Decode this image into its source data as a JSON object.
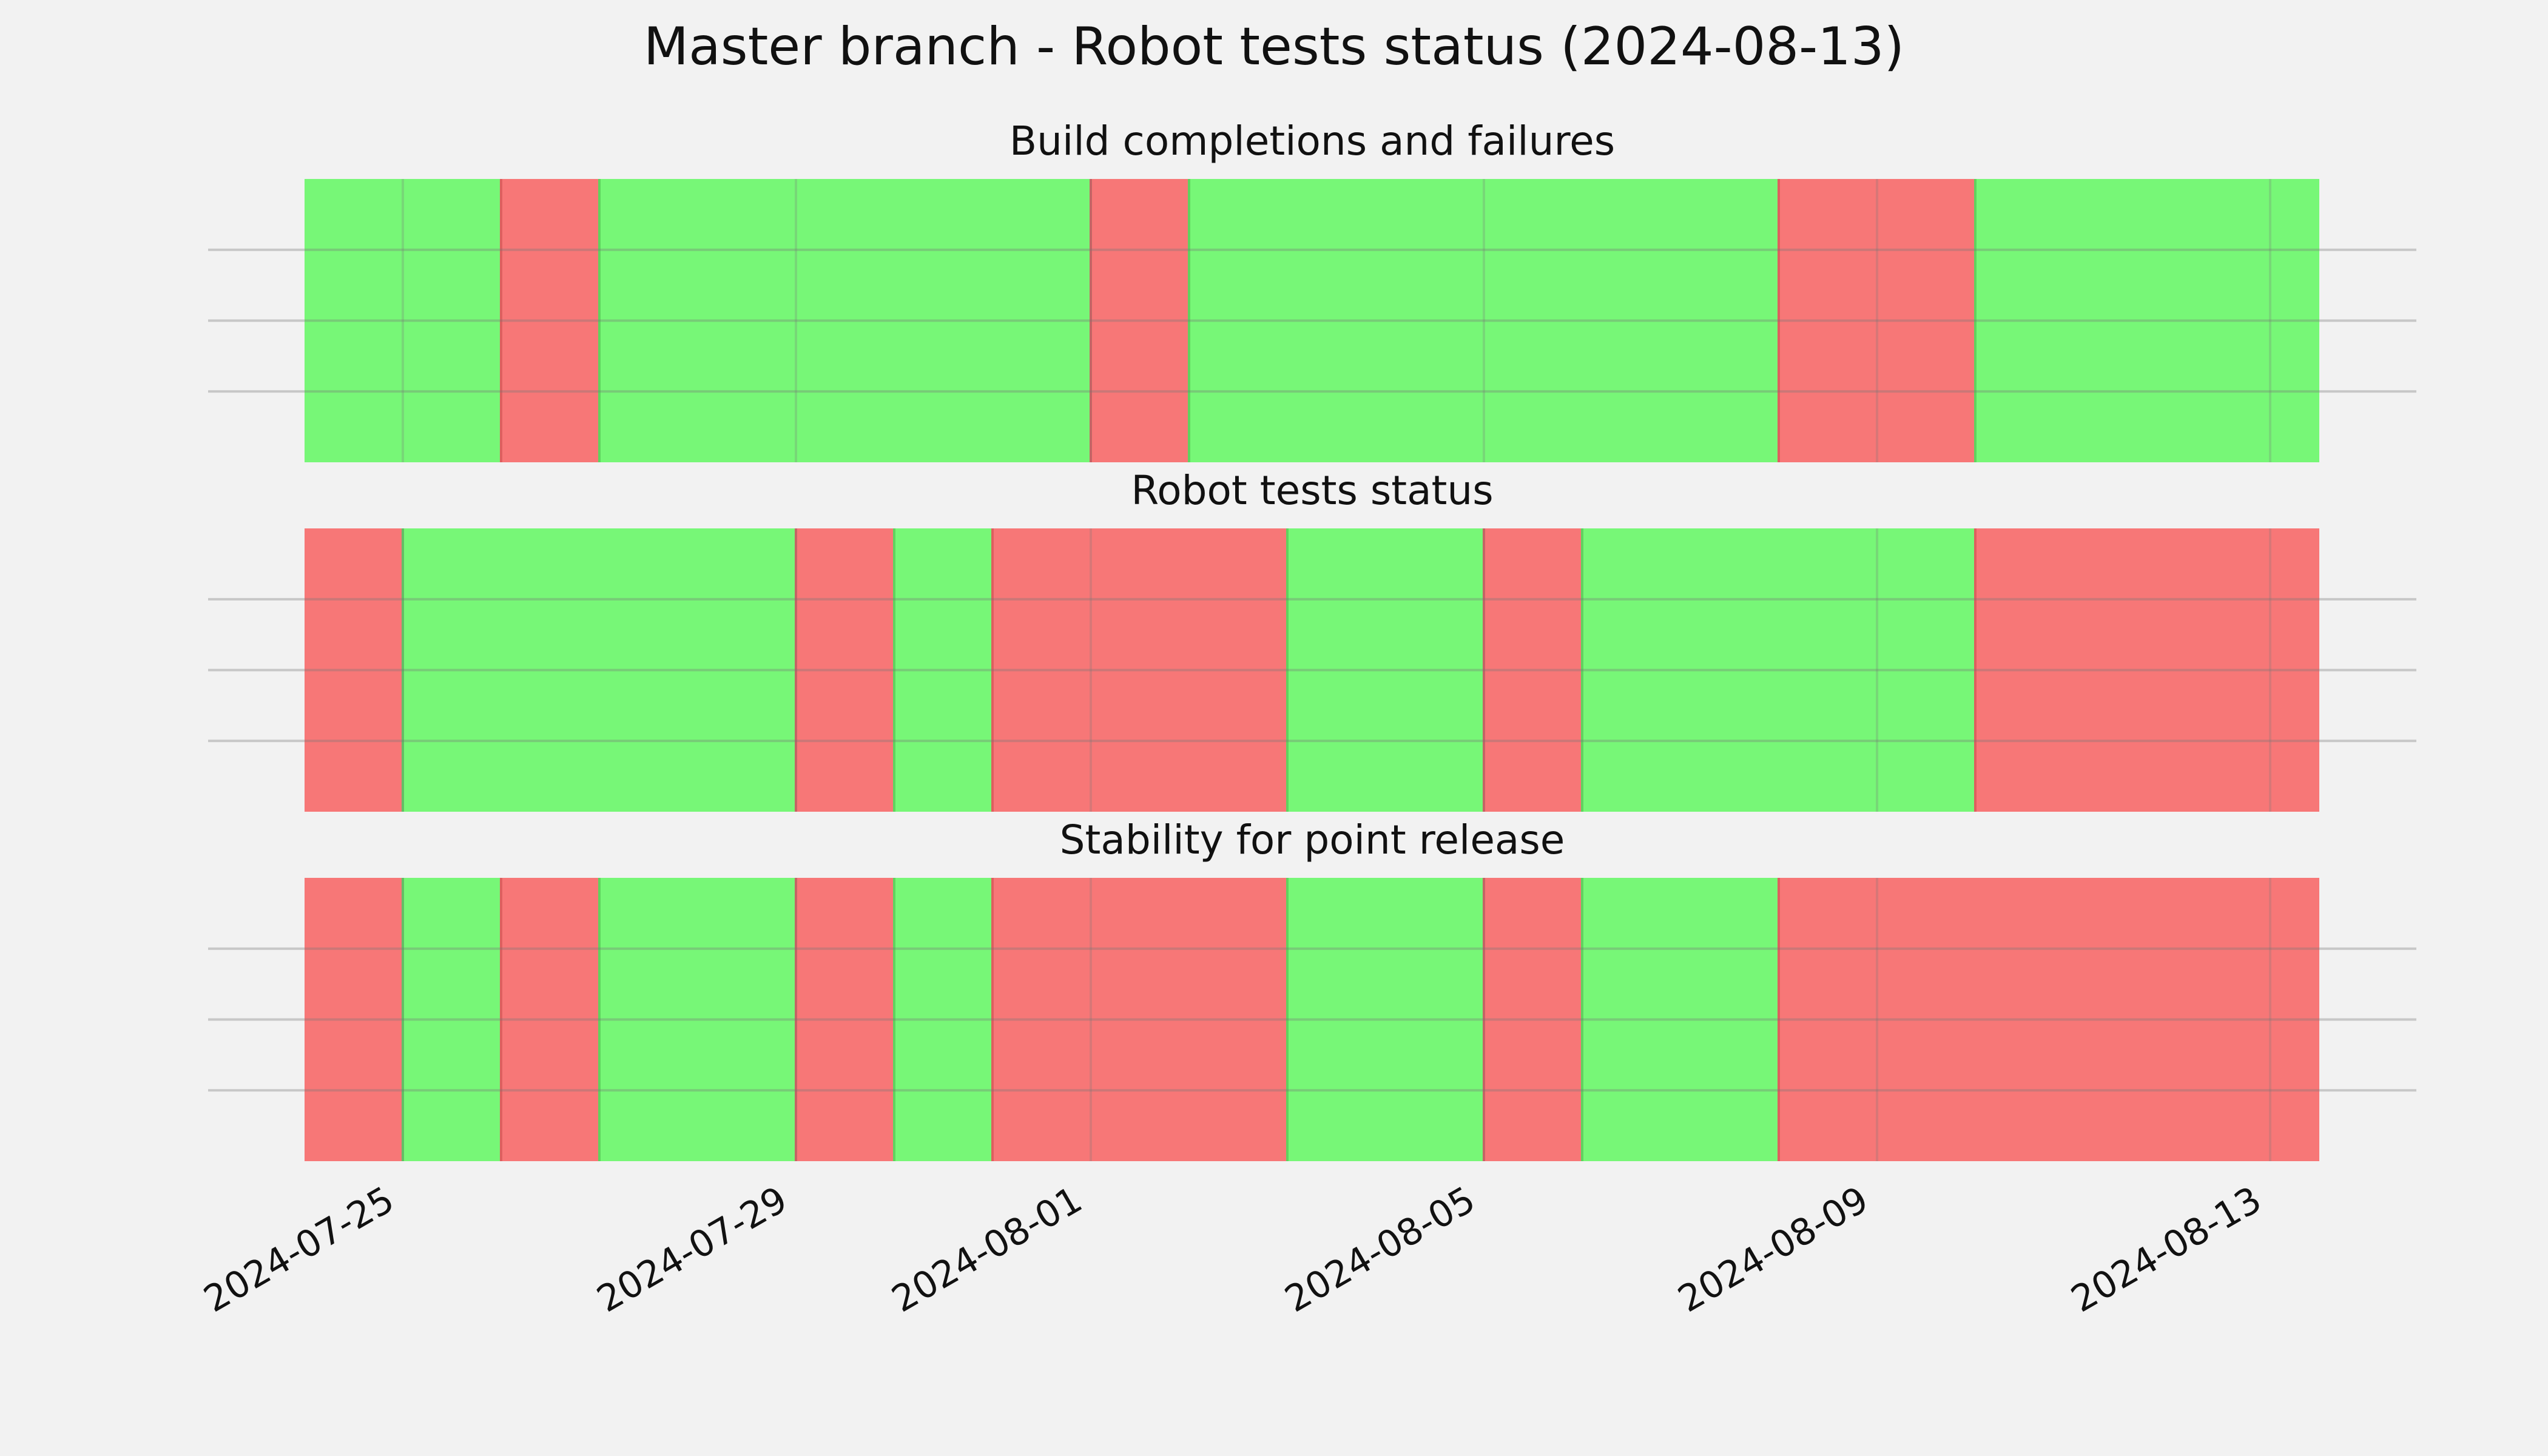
{
  "colors": {
    "background": "#f2f2f2",
    "pass": "#77f777",
    "fail": "#f77777",
    "gridline": "#c8c8c8"
  },
  "chart_data": {
    "type": "timeline",
    "title": "Master branch - Robot tests status (2024-08-13)",
    "x_type": "date",
    "xlim": [
      "2024-07-24",
      "2024-08-13T12:00"
    ],
    "xticks": [
      "2024-07-25",
      "2024-07-29",
      "2024-08-01",
      "2024-08-05",
      "2024-08-09",
      "2024-08-13"
    ],
    "panels": [
      {
        "subtitle": "Build completions and failures",
        "segments": [
          {
            "start": "2024-07-24",
            "end": "2024-07-26",
            "status": "pass"
          },
          {
            "start": "2024-07-26",
            "end": "2024-07-27",
            "status": "fail"
          },
          {
            "start": "2024-07-27",
            "end": "2024-08-01",
            "status": "pass"
          },
          {
            "start": "2024-08-01",
            "end": "2024-08-02",
            "status": "fail"
          },
          {
            "start": "2024-08-02",
            "end": "2024-08-08",
            "status": "pass"
          },
          {
            "start": "2024-08-08",
            "end": "2024-08-10",
            "status": "fail"
          },
          {
            "start": "2024-08-10",
            "end": "2024-08-13T12:00",
            "status": "pass"
          }
        ]
      },
      {
        "subtitle": "Robot tests status",
        "segments": [
          {
            "start": "2024-07-24",
            "end": "2024-07-25",
            "status": "fail"
          },
          {
            "start": "2024-07-25",
            "end": "2024-07-29",
            "status": "pass"
          },
          {
            "start": "2024-07-29",
            "end": "2024-07-30",
            "status": "fail"
          },
          {
            "start": "2024-07-30",
            "end": "2024-07-31",
            "status": "pass"
          },
          {
            "start": "2024-07-31",
            "end": "2024-08-03",
            "status": "fail"
          },
          {
            "start": "2024-08-03",
            "end": "2024-08-05",
            "status": "pass"
          },
          {
            "start": "2024-08-05",
            "end": "2024-08-06",
            "status": "fail"
          },
          {
            "start": "2024-08-06",
            "end": "2024-08-10",
            "status": "pass"
          },
          {
            "start": "2024-08-10",
            "end": "2024-08-13T12:00",
            "status": "fail"
          }
        ]
      },
      {
        "subtitle": "Stability for point release",
        "segments": [
          {
            "start": "2024-07-24",
            "end": "2024-07-25",
            "status": "fail"
          },
          {
            "start": "2024-07-25",
            "end": "2024-07-26",
            "status": "pass"
          },
          {
            "start": "2024-07-26",
            "end": "2024-07-27",
            "status": "fail"
          },
          {
            "start": "2024-07-27",
            "end": "2024-07-29",
            "status": "pass"
          },
          {
            "start": "2024-07-29",
            "end": "2024-07-30",
            "status": "fail"
          },
          {
            "start": "2024-07-30",
            "end": "2024-07-31",
            "status": "pass"
          },
          {
            "start": "2024-07-31",
            "end": "2024-08-03",
            "status": "fail"
          },
          {
            "start": "2024-08-03",
            "end": "2024-08-05",
            "status": "pass"
          },
          {
            "start": "2024-08-05",
            "end": "2024-08-06",
            "status": "fail"
          },
          {
            "start": "2024-08-06",
            "end": "2024-08-08",
            "status": "pass"
          },
          {
            "start": "2024-08-08",
            "end": "2024-08-13T12:00",
            "status": "fail"
          }
        ]
      }
    ]
  }
}
